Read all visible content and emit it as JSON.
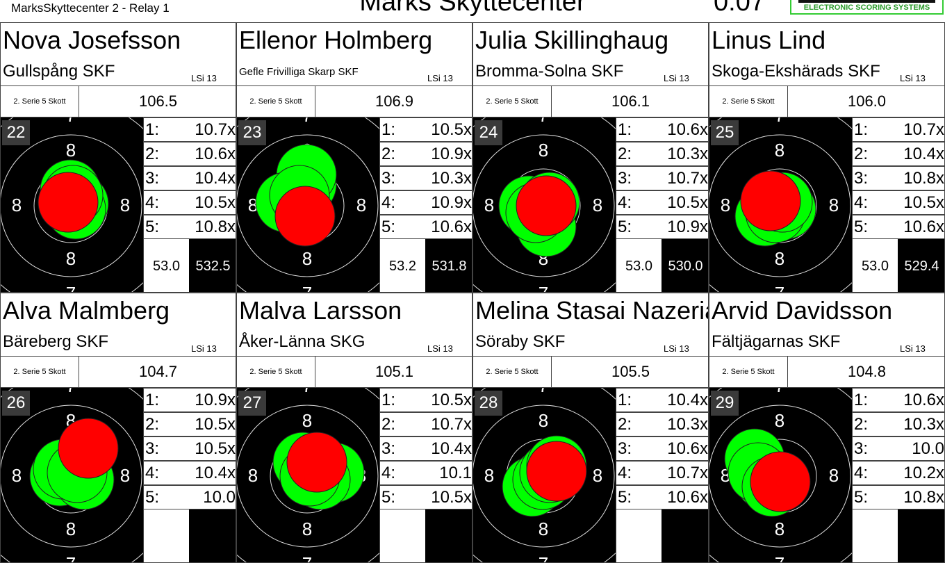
{
  "header": {
    "relay": "MarksSkyttecenter 2 - Relay 1",
    "title": "Marks Skyttecenter",
    "clock": "0:07",
    "logo_text": "ELECTRONIC SCORING SYSTEMS"
  },
  "colors": {
    "last_shot": "#ff0000",
    "previous_shot": "#00ff00",
    "target": "#000000"
  },
  "cards": [
    {
      "lane": "22",
      "name": "Nova Josefsson",
      "club": "Gullspång SKF",
      "class": "LSi 13",
      "series_label": "2. Serie 5 Skott",
      "series_total": "106.5",
      "shots": [
        "10.7x",
        "10.6x",
        "10.4x",
        "10.5x",
        "10.8x"
      ],
      "sub_total": "53.0",
      "total": "532.5"
    },
    {
      "lane": "23",
      "name": "Ellenor Holmberg",
      "club": "Gefle Frivilliga Skarp SKF",
      "class": "LSi 13",
      "series_label": "2. Serie 5 Skott",
      "series_total": "106.9",
      "shots": [
        "10.5x",
        "10.9x",
        "10.3x",
        "10.9x",
        "10.6x"
      ],
      "sub_total": "53.2",
      "total": "531.8"
    },
    {
      "lane": "24",
      "name": "Julia Skillinghaug",
      "club": "Bromma-Solna SKF",
      "class": "LSi 13",
      "series_label": "2. Serie 5 Skott",
      "series_total": "106.1",
      "shots": [
        "10.6x",
        "10.3x",
        "10.7x",
        "10.5x",
        "10.9x"
      ],
      "sub_total": "53.0",
      "total": "530.0"
    },
    {
      "lane": "25",
      "name": "Linus Lind",
      "club": "Skoga-Ekshärads SKF",
      "class": "LSi 13",
      "series_label": "2. Serie 5 Skott",
      "series_total": "106.0",
      "shots": [
        "10.7x",
        "10.4x",
        "10.8x",
        "10.5x",
        "10.6x"
      ],
      "sub_total": "53.0",
      "total": "529.4"
    },
    {
      "lane": "26",
      "name": "Alva Malmberg",
      "club": "Bäreberg SKF",
      "class": "LSi 13",
      "series_label": "2. Serie 5 Skott",
      "series_total": "104.7",
      "shots": [
        "10.9x",
        "10.5x",
        "10.5x",
        "10.4x",
        "10.0"
      ]
    },
    {
      "lane": "27",
      "name": "Malva Larsson",
      "club": "Åker-Länna SKG",
      "class": "LSi 13",
      "series_label": "2. Serie 5 Skott",
      "series_total": "105.1",
      "shots": [
        "10.5x",
        "10.7x",
        "10.4x",
        "10.1",
        "10.5x"
      ]
    },
    {
      "lane": "28",
      "name": "Melina Stasai Nazerian",
      "club": "Söraby SKF",
      "class": "LSi 13",
      "series_label": "2. Serie 5 Skott",
      "series_total": "105.5",
      "shots": [
        "10.4x",
        "10.3x",
        "10.6x",
        "10.7x",
        "10.6x"
      ]
    },
    {
      "lane": "29",
      "name": "Arvid Davidsson",
      "club": "Fältjägarnas SKF",
      "class": "LSi 13",
      "series_label": "2. Serie 5 Skott",
      "series_total": "104.8",
      "shots": [
        "10.6x",
        "10.3x",
        "10.0",
        "10.2x",
        "10.8x"
      ]
    }
  ]
}
